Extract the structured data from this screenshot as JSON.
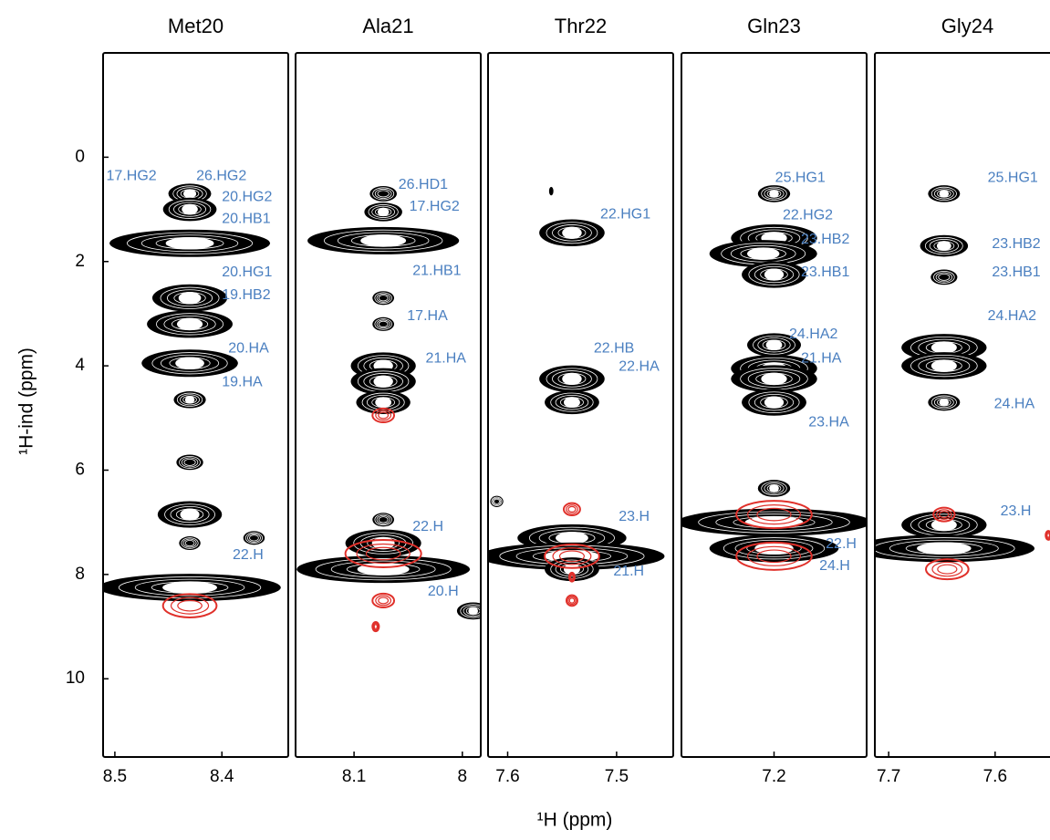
{
  "figure": {
    "xlabel": "¹H (ppm)",
    "ylabel": "¹H-ind (ppm)"
  },
  "chart_data": [
    {
      "type": "contour",
      "title": "Met20",
      "xlim": [
        8.511,
        8.338
      ],
      "xticks": [
        8.5,
        8.4
      ],
      "ylim": [
        -2,
        11.5
      ],
      "yticks": [
        0,
        2,
        4,
        6,
        8,
        10
      ],
      "peak_color": "#000000",
      "negative_color": "#e0302a",
      "label_color": "#4a7fc0",
      "peaks": {
        "x": [
          8.43,
          8.43,
          8.43,
          8.43,
          8.43,
          8.43,
          8.43,
          8.43,
          8.43,
          8.43,
          8.37,
          8.43
        ],
        "y": [
          0.7,
          1.0,
          1.65,
          2.7,
          3.2,
          3.95,
          4.65,
          5.85,
          6.85,
          7.4,
          7.3,
          8.25
        ],
        "width": [
          0.04,
          0.05,
          0.15,
          0.07,
          0.08,
          0.09,
          0.03,
          0.025,
          0.06,
          0.02,
          0.02,
          0.17
        ]
      },
      "negative_peaks": {
        "x": [
          8.43
        ],
        "y": [
          8.6
        ],
        "width": [
          0.05
        ]
      },
      "annotations": [
        {
          "text": "17.HG2",
          "x": 8.508,
          "y": 0.37
        },
        {
          "text": "26.HG2",
          "x": 8.424,
          "y": 0.37
        },
        {
          "text": "20.HG2",
          "x": 8.4,
          "y": 0.77
        },
        {
          "text": "20.HB1",
          "x": 8.4,
          "y": 1.19
        },
        {
          "text": "20.HG1",
          "x": 8.4,
          "y": 2.21
        },
        {
          "text": "19.HB2",
          "x": 8.4,
          "y": 2.65
        },
        {
          "text": "20.HA",
          "x": 8.394,
          "y": 3.67
        },
        {
          "text": "19.HA",
          "x": 8.4,
          "y": 4.32
        },
        {
          "text": "22.H",
          "x": 8.39,
          "y": 7.63
        }
      ]
    },
    {
      "type": "contour",
      "title": "Ala21",
      "xlim": [
        8.154,
        7.983
      ],
      "xticks": [
        8.1,
        8.0
      ],
      "ylim": [
        -2,
        11.5
      ],
      "peak_color": "#000000",
      "negative_color": "#e0302a",
      "label_color": "#4a7fc0",
      "peaks": {
        "x": [
          8.073,
          8.073,
          8.073,
          8.073,
          8.073,
          8.073,
          8.073,
          8.073,
          8.073,
          8.073,
          8.073,
          7.99
        ],
        "y": [
          0.7,
          1.05,
          1.6,
          2.7,
          3.2,
          4.0,
          4.3,
          4.7,
          6.95,
          7.4,
          7.9,
          8.7
        ],
        "width": [
          0.025,
          0.035,
          0.14,
          0.02,
          0.02,
          0.06,
          0.06,
          0.05,
          0.02,
          0.07,
          0.16,
          0.03
        ]
      },
      "negative_peaks": {
        "x": [
          8.073,
          8.073,
          8.073,
          8.08
        ],
        "y": [
          7.6,
          4.95,
          8.5,
          9.0
        ],
        "width": [
          0.07,
          0.02,
          0.02,
          0.006
        ]
      },
      "annotations": [
        {
          "text": "26.HD1",
          "x": 8.059,
          "y": 0.53
        },
        {
          "text": "17.HG2",
          "x": 8.049,
          "y": 0.95
        },
        {
          "text": "21.HB1",
          "x": 8.046,
          "y": 2.18
        },
        {
          "text": "17.HA",
          "x": 8.051,
          "y": 3.05
        },
        {
          "text": "21.HA",
          "x": 8.034,
          "y": 3.86
        },
        {
          "text": "22.H",
          "x": 8.046,
          "y": 7.09
        },
        {
          "text": "20.H",
          "x": 8.032,
          "y": 8.33
        }
      ]
    },
    {
      "type": "contour",
      "title": "Thr22",
      "xlim": [
        7.618,
        7.448
      ],
      "xticks": [
        7.6,
        7.5
      ],
      "ylim": [
        -2,
        11.5
      ],
      "peak_color": "#000000",
      "negative_color": "#e0302a",
      "label_color": "#4a7fc0",
      "peaks": {
        "x": [
          7.541,
          7.541,
          7.541,
          7.541,
          7.541,
          7.541,
          7.61,
          7.56
        ],
        "y": [
          1.45,
          4.25,
          4.7,
          7.3,
          7.65,
          7.9,
          6.6,
          0.65
        ],
        "width": [
          0.06,
          0.06,
          0.05,
          0.1,
          0.17,
          0.05,
          0.012,
          0.004
        ]
      },
      "negative_peaks": {
        "x": [
          7.541,
          7.541,
          7.541,
          7.541
        ],
        "y": [
          6.75,
          7.65,
          8.05,
          8.5
        ],
        "width": [
          0.015,
          0.05,
          0.005,
          0.01
        ]
      },
      "annotations": [
        {
          "text": "22.HG1",
          "x": 7.515,
          "y": 1.1
        },
        {
          "text": "22.HB",
          "x": 7.521,
          "y": 3.67
        },
        {
          "text": "22.HA",
          "x": 7.498,
          "y": 4.02
        },
        {
          "text": "23.H",
          "x": 7.498,
          "y": 6.9
        },
        {
          "text": "21.H",
          "x": 7.503,
          "y": 7.95
        }
      ]
    },
    {
      "type": "contour",
      "title": "Gln23",
      "xlim": [
        7.286,
        7.114
      ],
      "xticks": [
        7.2
      ],
      "ylim": [
        -2,
        11.5
      ],
      "peak_color": "#000000",
      "negative_color": "#e0302a",
      "label_color": "#4a7fc0",
      "peaks": {
        "x": [
          7.2,
          7.2,
          7.21,
          7.2,
          7.2,
          7.2,
          7.2,
          7.2,
          7.2,
          7.2,
          7.2
        ],
        "y": [
          0.7,
          1.55,
          1.85,
          2.25,
          3.6,
          4.05,
          4.25,
          4.7,
          6.35,
          7.0,
          7.5
        ],
        "width": [
          0.03,
          0.08,
          0.1,
          0.06,
          0.05,
          0.08,
          0.08,
          0.06,
          0.03,
          0.18,
          0.12
        ]
      },
      "negative_peaks": {
        "x": [
          7.2,
          7.2
        ],
        "y": [
          6.85,
          7.65
        ],
        "width": [
          0.07,
          0.07
        ]
      },
      "annotations": [
        {
          "text": "25.HG1",
          "x": 7.199,
          "y": 0.4
        },
        {
          "text": "22.HG2",
          "x": 7.192,
          "y": 1.12
        },
        {
          "text": "23.HB2",
          "x": 7.175,
          "y": 1.58
        },
        {
          "text": "23.HB1",
          "x": 7.175,
          "y": 2.21
        },
        {
          "text": "24.HA2",
          "x": 7.186,
          "y": 3.4
        },
        {
          "text": "21.HA",
          "x": 7.175,
          "y": 3.86
        },
        {
          "text": "23.HA",
          "x": 7.168,
          "y": 5.09
        },
        {
          "text": "22.H",
          "x": 7.152,
          "y": 7.42
        },
        {
          "text": "24.H",
          "x": 7.158,
          "y": 7.84
        }
      ]
    },
    {
      "type": "contour",
      "title": "Gly24",
      "xlim": [
        7.713,
        7.539
      ],
      "xticks": [
        7.7,
        7.6
      ],
      "ylim": [
        -2,
        11.5
      ],
      "peak_color": "#000000",
      "negative_color": "#e0302a",
      "label_color": "#4a7fc0",
      "peaks": {
        "x": [
          7.648,
          7.648,
          7.648,
          7.648,
          7.648,
          7.648,
          7.648,
          7.648
        ],
        "y": [
          0.7,
          1.7,
          2.3,
          3.65,
          4.0,
          4.7,
          7.05,
          7.5
        ],
        "width": [
          0.03,
          0.045,
          0.025,
          0.08,
          0.08,
          0.03,
          0.08,
          0.17
        ]
      },
      "negative_peaks": {
        "x": [
          7.648,
          7.55,
          7.645
        ],
        "y": [
          6.85,
          7.25,
          7.9
        ],
        "width": [
          0.02,
          0.005,
          0.04
        ]
      },
      "annotations": [
        {
          "text": "25.HG1",
          "x": 7.607,
          "y": 0.4
        },
        {
          "text": "23.HB2",
          "x": 7.603,
          "y": 1.67
        },
        {
          "text": "23.HB1",
          "x": 7.603,
          "y": 2.21
        },
        {
          "text": "24.HA2",
          "x": 7.607,
          "y": 3.05
        },
        {
          "text": "24.HA",
          "x": 7.601,
          "y": 4.74
        },
        {
          "text": "23.H",
          "x": 7.595,
          "y": 6.79
        }
      ]
    }
  ]
}
